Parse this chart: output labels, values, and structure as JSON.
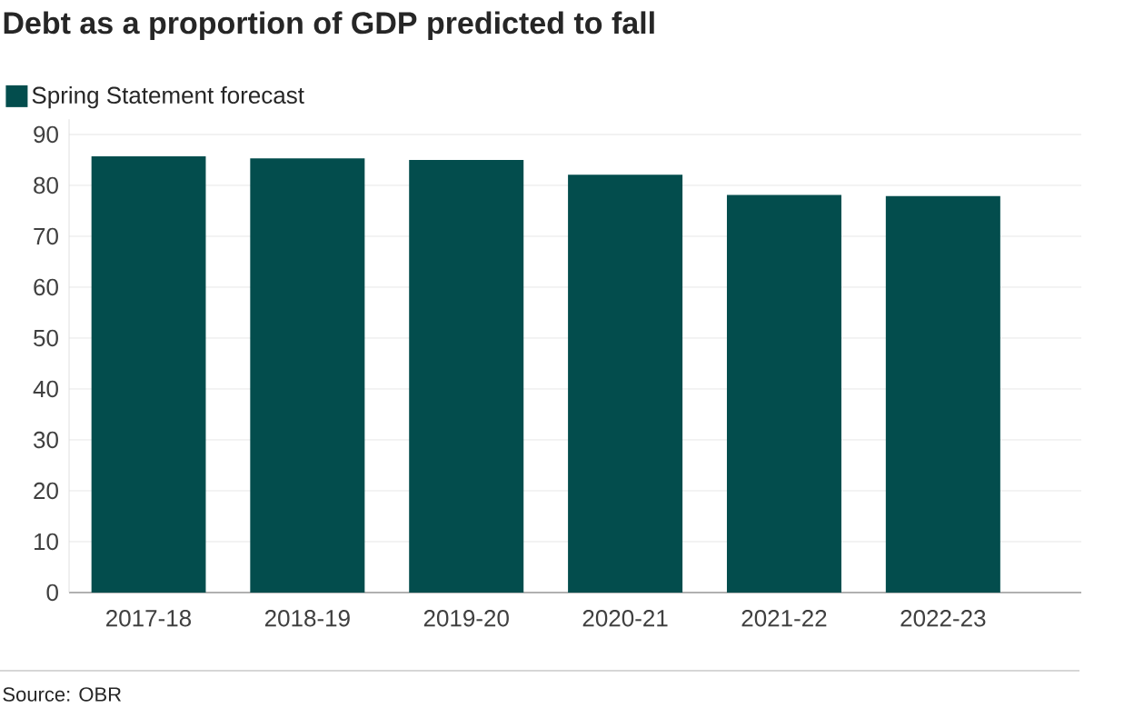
{
  "chart_data": {
    "type": "bar",
    "title": "Debt as a proportion of GDP predicted to fall",
    "categories": [
      "2017-18",
      "2018-19",
      "2019-20",
      "2020-21",
      "2021-22",
      "2022-23"
    ],
    "series": [
      {
        "name": "Spring Statement forecast",
        "color": "#034d4d",
        "values": [
          85.7,
          85.3,
          85.0,
          82.1,
          78.1,
          77.9
        ]
      }
    ],
    "ylim": [
      0,
      93
    ],
    "yticks": [
      0,
      10,
      20,
      30,
      40,
      50,
      60,
      70,
      80,
      90
    ],
    "grid": "y",
    "legend": "top left",
    "annotations": [
      "Source: OBR"
    ]
  }
}
